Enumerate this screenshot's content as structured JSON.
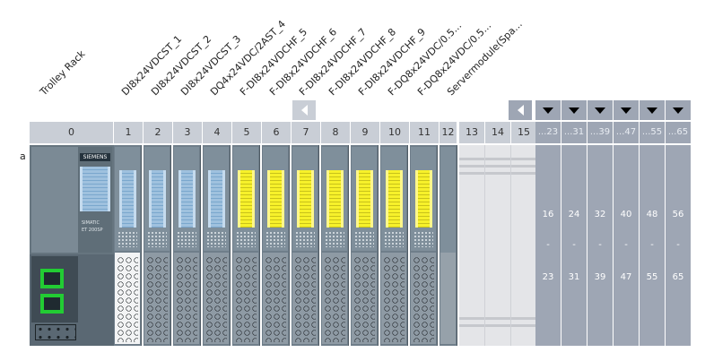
{
  "rack": {
    "label": "Trolley Rack",
    "row_label": "a",
    "head_slot": "0",
    "head_brand": "SIEMENS",
    "head_model": "SIMATIC",
    "head_sub": "ET 200SP"
  },
  "modules": [
    {
      "slot": "1",
      "label": "DI8x24VDCST_1",
      "color": "blue"
    },
    {
      "slot": "2",
      "label": "DI8x24VDCST_2",
      "color": "blue"
    },
    {
      "slot": "3",
      "label": "DI8x24VDCST_3",
      "color": "blue"
    },
    {
      "slot": "4",
      "label": "DQ4x24VDC/2AST_4",
      "color": "blue"
    },
    {
      "slot": "5",
      "label": "F-DI8x24VDCHF_5",
      "color": "yellow"
    },
    {
      "slot": "6",
      "label": "F-DI8x24VDCHF_6",
      "color": "yellow"
    },
    {
      "slot": "7",
      "label": "F-DI8x24VDCHF_7",
      "color": "yellow"
    },
    {
      "slot": "8",
      "label": "F-DI8x24VDCHF_8",
      "color": "yellow"
    },
    {
      "slot": "9",
      "label": "F-DI8x24VDCHF_9",
      "color": "yellow"
    },
    {
      "slot": "10",
      "label": "F-DQ8x24VDC/0.5...",
      "color": "yellow"
    },
    {
      "slot": "11",
      "label": "F-DQ8x24VDC/0.5...",
      "color": "yellow"
    },
    {
      "slot": "12",
      "label": "Servermodule(Spa...",
      "color": "server"
    }
  ],
  "empty_slots": [
    "13",
    "14",
    "15"
  ],
  "overflow_groups": [
    {
      "header": "...23",
      "start": "16",
      "sep": "-",
      "end": "23"
    },
    {
      "header": "...31",
      "start": "24",
      "sep": "-",
      "end": "31"
    },
    {
      "header": "...39",
      "start": "32",
      "sep": "-",
      "end": "39"
    },
    {
      "header": "...47",
      "start": "40",
      "sep": "-",
      "end": "47"
    },
    {
      "header": "...55",
      "start": "48",
      "sep": "-",
      "end": "55"
    },
    {
      "header": "...65",
      "start": "56",
      "sep": "-",
      "end": "65"
    }
  ],
  "colors": {
    "header": "#c9ced6",
    "overflow": "#9ea6b4",
    "module_body": "#6f7e8a",
    "di_strip": "#9fc1de",
    "fail_safe_strip": "#f7f12a",
    "port_green": "#22cc33"
  },
  "icons": {
    "scroll_left": "triangle-left-icon",
    "expand": "triangle-down-icon"
  }
}
